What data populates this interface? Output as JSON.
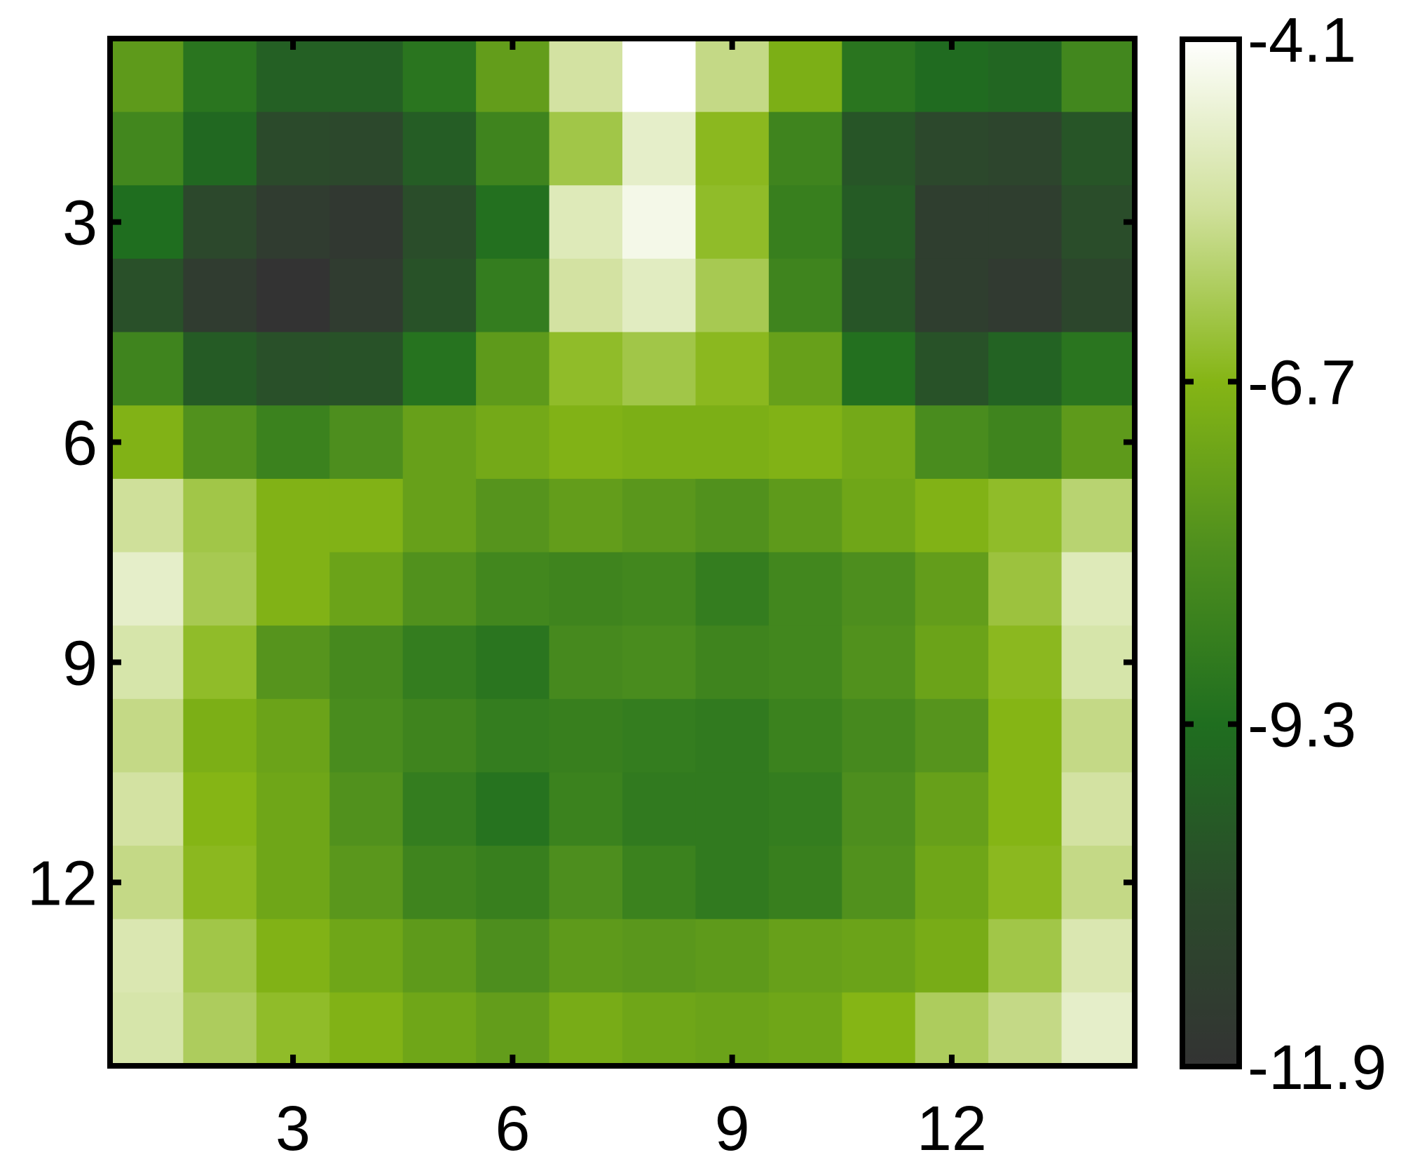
{
  "chart_data": {
    "type": "heatmap",
    "title": "",
    "xlabel": "",
    "ylabel": "",
    "rows": 14,
    "cols": 14,
    "x_ticks": [
      3,
      6,
      9,
      12
    ],
    "y_ticks": [
      3,
      6,
      9,
      12
    ],
    "x_tick_labels": [
      "3",
      "6",
      "9",
      "12"
    ],
    "y_tick_labels": [
      "3",
      "6",
      "9",
      "12"
    ],
    "grid": false,
    "colorbar": {
      "min": -11.9,
      "max": -4.1,
      "ticks": [
        -4.1,
        -6.7,
        -9.3,
        -11.9
      ],
      "tick_labels": [
        "-4.1",
        "-6.7",
        "-9.3",
        "-11.9"
      ],
      "placement": "right"
    },
    "colormap": [
      {
        "value": -11.9,
        "color": "#333333"
      },
      {
        "value": -10.6,
        "color": "#2b4a2b"
      },
      {
        "value": -9.3,
        "color": "#1f6e1f"
      },
      {
        "value": -8.0,
        "color": "#4d8e1e"
      },
      {
        "value": -6.7,
        "color": "#85b515"
      },
      {
        "value": -5.4,
        "color": "#cfe09a"
      },
      {
        "value": -4.1,
        "color": "#ffffff"
      }
    ],
    "values": [
      [
        -7.6,
        -9.0,
        -9.8,
        -9.8,
        -9.0,
        -7.5,
        -5.3,
        -4.1,
        -5.6,
        -6.9,
        -9.0,
        -9.4,
        -9.6,
        -8.3
      ],
      [
        -8.3,
        -9.5,
        -10.6,
        -10.7,
        -9.9,
        -8.4,
        -6.2,
        -4.8,
        -6.6,
        -8.4,
        -10.2,
        -10.7,
        -10.9,
        -10.2
      ],
      [
        -9.3,
        -10.7,
        -11.4,
        -11.6,
        -10.5,
        -9.2,
        -5.0,
        -4.4,
        -6.5,
        -8.6,
        -10.0,
        -11.3,
        -11.3,
        -10.5
      ],
      [
        -10.4,
        -11.4,
        -11.9,
        -11.4,
        -10.3,
        -8.7,
        -5.3,
        -4.9,
        -6.1,
        -8.4,
        -10.2,
        -11.3,
        -11.5,
        -10.8
      ],
      [
        -8.4,
        -10.0,
        -10.4,
        -10.3,
        -9.1,
        -7.6,
        -6.5,
        -6.2,
        -6.6,
        -7.4,
        -9.2,
        -10.3,
        -9.7,
        -9.0
      ],
      [
        -6.8,
        -7.9,
        -8.5,
        -8.0,
        -7.4,
        -7.1,
        -6.8,
        -6.9,
        -6.9,
        -6.8,
        -7.1,
        -8.1,
        -8.4,
        -7.6
      ],
      [
        -5.4,
        -6.2,
        -6.8,
        -6.8,
        -7.4,
        -7.8,
        -7.5,
        -7.7,
        -7.9,
        -7.6,
        -7.2,
        -6.8,
        -6.5,
        -5.8
      ],
      [
        -4.8,
        -6.1,
        -6.8,
        -7.3,
        -7.9,
        -8.3,
        -8.4,
        -8.3,
        -8.7,
        -8.3,
        -8.0,
        -7.5,
        -6.3,
        -5.0
      ],
      [
        -5.2,
        -6.5,
        -7.8,
        -8.2,
        -8.7,
        -9.0,
        -8.2,
        -8.1,
        -8.4,
        -8.3,
        -7.9,
        -7.3,
        -6.6,
        -5.2
      ],
      [
        -5.6,
        -6.9,
        -7.3,
        -8.1,
        -8.4,
        -8.7,
        -8.6,
        -8.7,
        -8.8,
        -8.5,
        -8.2,
        -7.8,
        -6.7,
        -5.6
      ],
      [
        -5.3,
        -6.7,
        -7.2,
        -7.9,
        -8.7,
        -9.1,
        -8.5,
        -8.8,
        -8.8,
        -8.7,
        -8.0,
        -7.4,
        -6.7,
        -5.3
      ],
      [
        -5.6,
        -6.6,
        -7.2,
        -7.7,
        -8.4,
        -8.6,
        -8.0,
        -8.5,
        -8.8,
        -8.6,
        -7.9,
        -7.2,
        -6.6,
        -5.6
      ],
      [
        -5.1,
        -6.2,
        -6.8,
        -7.2,
        -7.6,
        -8.0,
        -7.6,
        -7.7,
        -7.6,
        -7.4,
        -7.3,
        -7.0,
        -6.2,
        -5.1
      ],
      [
        -5.2,
        -6.0,
        -6.5,
        -6.8,
        -7.2,
        -7.5,
        -7.0,
        -7.2,
        -7.3,
        -7.2,
        -6.7,
        -6.0,
        -5.6,
        -4.8
      ]
    ]
  }
}
